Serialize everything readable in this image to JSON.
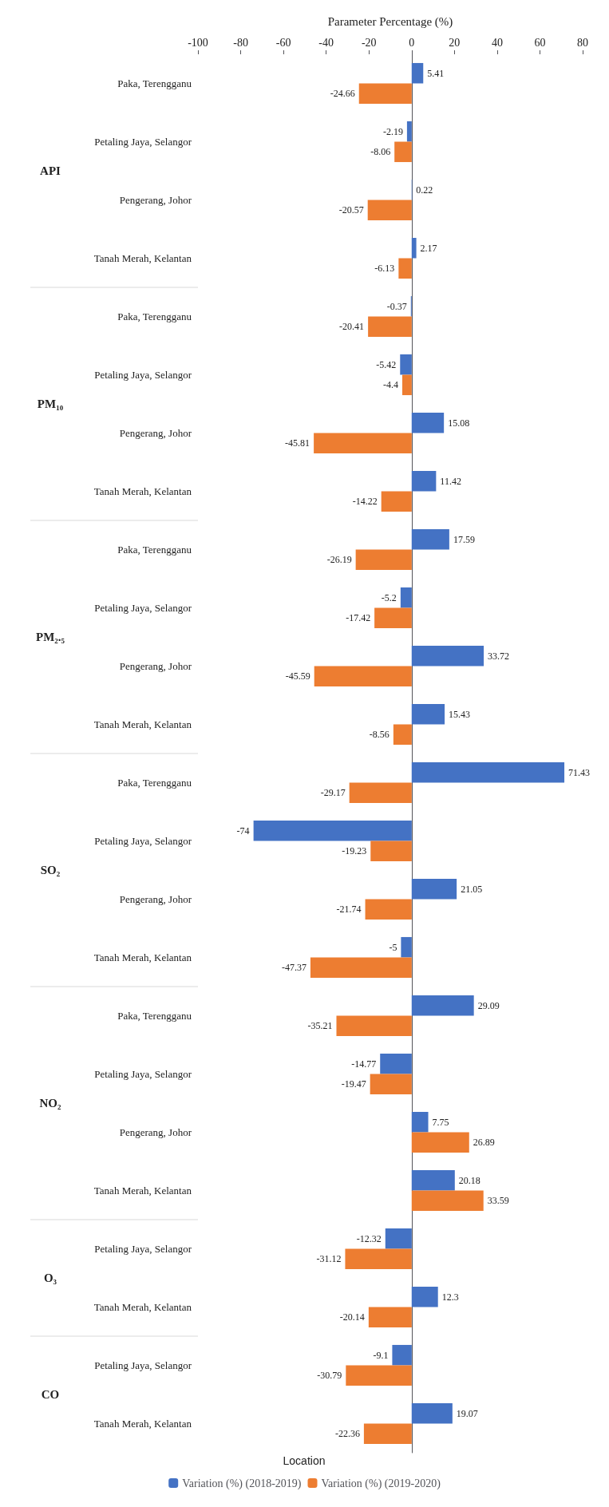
{
  "chart_data": {
    "type": "bar",
    "orientation": "horizontal",
    "xlabel": "Parameter Percentage (%)",
    "categories": [
      "Paka, Terengganu",
      "Petaling Jaya, Selangor",
      "Pengerang, Johor",
      "Tanah Merah, Kelantan",
      "Paka, Terengganu",
      "Petaling Jaya, Selangor",
      "Pengerang, Johor",
      "Tanah Merah, Kelantan",
      "Paka, Terengganu",
      "Petaling Jaya, Selangor",
      "Pengerang, Johor",
      "Tanah Merah, Kelantan",
      "Paka, Terengganu",
      "Petaling Jaya, Selangor",
      "Pengerang, Johor",
      "Tanah Merah, Kelantan",
      "Paka, Terengganu",
      "Petaling Jaya, Selangor",
      "Pengerang, Johor",
      "Tanah Merah, Kelantan",
      "Petaling Jaya, Selangor",
      "Tanah Merah, Kelantan",
      "Petaling Jaya, Selangor",
      "Tanah Merah, Kelantan"
    ],
    "annotations": [
      "API",
      "PM₁₀",
      "PM₂.₅",
      "SO₂",
      "NO₂",
      "O₃",
      "CO",
      "Location"
    ],
    "series": [
      {
        "name": "Variation (%) (2018-2019)",
        "color": "#4472c4",
        "values": [
          5.41,
          -2.19,
          0.22,
          2.17,
          -0.37,
          -5.42,
          15.08,
          11.42,
          17.59,
          -5.2,
          33.72,
          15.43,
          71.43,
          -74,
          21.05,
          -5,
          29.09,
          -14.77,
          7.75,
          20.18,
          -12.32,
          12.3,
          -9.1,
          19.07
        ]
      },
      {
        "name": "Variation (%) (2019-2020)",
        "color": "#ed7d31",
        "values": [
          -24.66,
          -8.06,
          -20.57,
          -6.13,
          -20.41,
          -4.4,
          -45.81,
          -14.22,
          -26.19,
          -17.42,
          -45.59,
          -8.56,
          -29.17,
          -19.23,
          -21.74,
          -47.37,
          -35.21,
          -19.47,
          26.89,
          33.59,
          -31.12,
          -20.14,
          -30.79,
          -22.36
        ]
      }
    ],
    "xlim": [
      -100,
      80
    ],
    "xticks": [
      -100,
      -80,
      -60,
      -40,
      -20,
      0,
      20,
      40,
      60,
      80
    ],
    "data_labels": true,
    "legend": "bottom"
  }
}
